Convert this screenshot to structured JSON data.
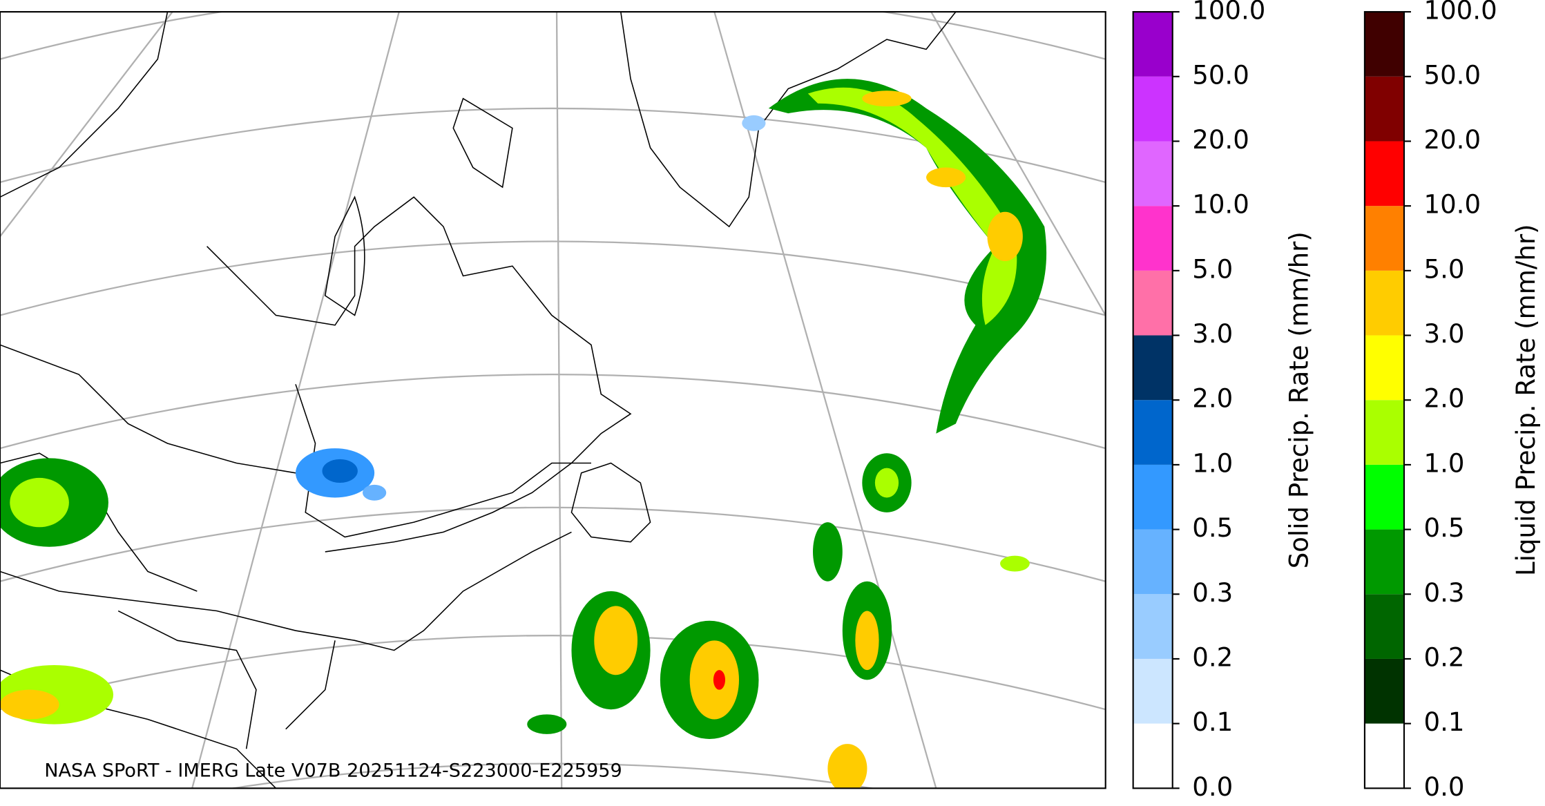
{
  "caption": "NASA SPoRT - IMERG Late V07B 20251124-S223000-E225959",
  "colorbars": [
    {
      "label": "Solid Precip. Rate (mm/hr)",
      "ticks": [
        "0.0",
        "0.1",
        "0.2",
        "0.3",
        "0.5",
        "1.0",
        "2.0",
        "3.0",
        "5.0",
        "10.0",
        "20.0",
        "50.0",
        "100.0"
      ],
      "colors": [
        "#ffffff",
        "#cce6ff",
        "#99ccff",
        "#66b2ff",
        "#3399ff",
        "#0066cc",
        "#003366",
        "#ff70a8",
        "#ff33cc",
        "#e066ff",
        "#cc33ff",
        "#9900cc"
      ]
    },
    {
      "label": "Liquid Precip. Rate (mm/hr)",
      "ticks": [
        "0.0",
        "0.1",
        "0.2",
        "0.3",
        "0.5",
        "1.0",
        "2.0",
        "3.0",
        "5.0",
        "10.0",
        "20.0",
        "50.0",
        "100.0"
      ],
      "colors": [
        "#ffffff",
        "#003300",
        "#006600",
        "#009900",
        "#00ff00",
        "#aaff00",
        "#ffff00",
        "#ffcc00",
        "#ff8000",
        "#ff0000",
        "#800000",
        "#400000"
      ]
    }
  ]
}
